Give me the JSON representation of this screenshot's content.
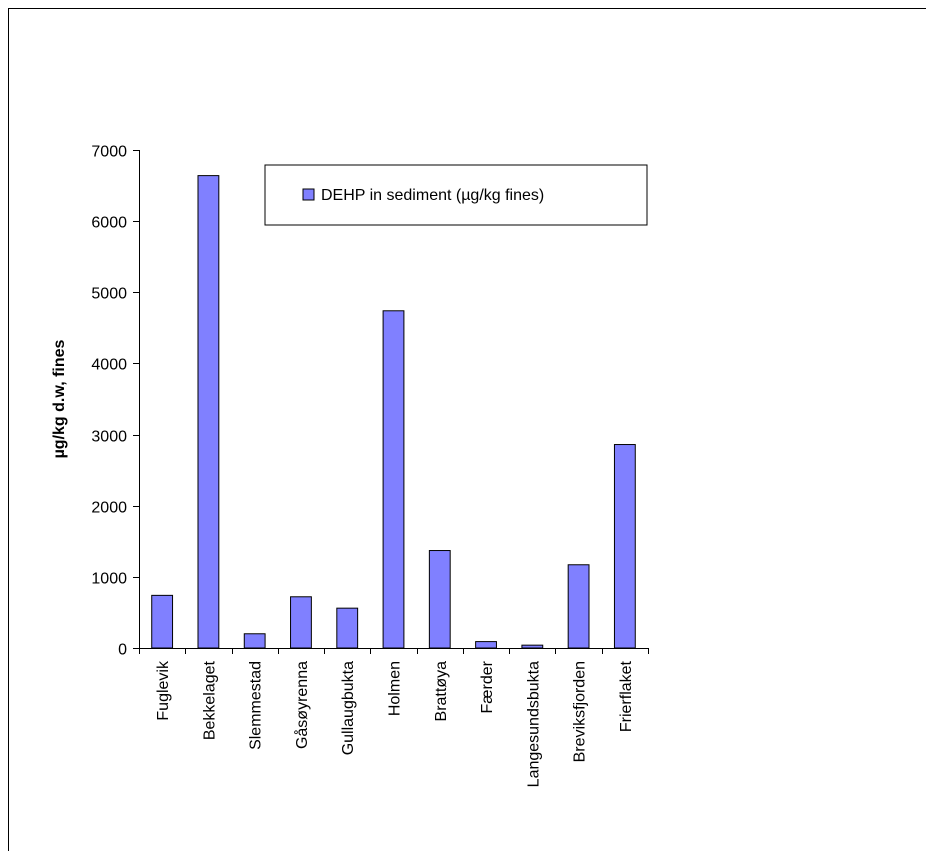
{
  "chart_data": {
    "type": "bar",
    "categories": [
      "Fuglevik",
      "Bekkelaget",
      "Slemmestad",
      "Gåsøyrenna",
      "Gullaugbukta",
      "Holmen",
      "Brattøya",
      "Færder",
      "Langesundsbukta",
      "Breviksfjorden",
      "Frierflaket"
    ],
    "series": [
      {
        "name": "DEHP in sediment (µg/kg fines)",
        "values": [
          740,
          6640,
          200,
          720,
          560,
          4740,
          1370,
          90,
          40,
          1170,
          2860
        ],
        "color": "#8080ff"
      }
    ],
    "title": "",
    "xlabel": "",
    "ylabel": "µg/kg d.w, fines",
    "ylim": [
      0,
      7000
    ],
    "yticks": [
      0,
      1000,
      2000,
      3000,
      4000,
      5000,
      6000,
      7000
    ],
    "grid": false,
    "legend_position": "top-right"
  }
}
